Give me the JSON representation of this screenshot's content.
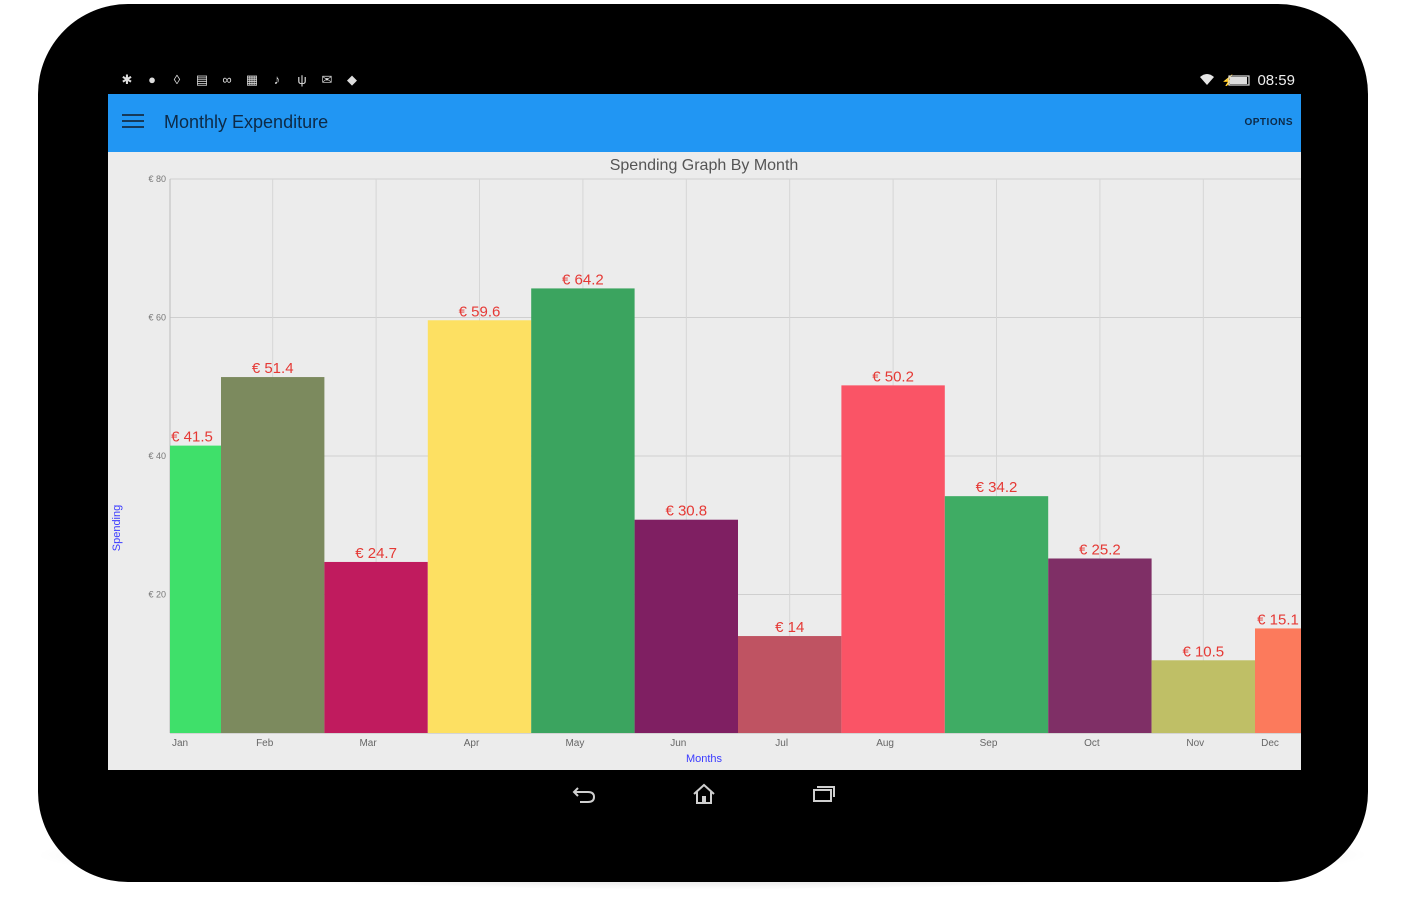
{
  "status_bar": {
    "left_icons": [
      "bluetooth-icon",
      "message-icon",
      "location-icon",
      "notes-icon",
      "link-icon",
      "gallery-icon",
      "music-icon",
      "usb-icon",
      "mail-icon",
      "android-icon"
    ],
    "wifi_icon": "wifi-icon",
    "battery_icon": "battery-icon",
    "time": "08:59"
  },
  "app_bar": {
    "title": "Monthly Expenditure",
    "options_label": "OPTIONS",
    "color": "#2196f3"
  },
  "chart_data": {
    "type": "bar",
    "title": "Spending Graph By Month",
    "xlabel": "Months",
    "ylabel": "Spending",
    "categories": [
      "Jan",
      "Feb",
      "Mar",
      "Apr",
      "May",
      "Jun",
      "Jul",
      "Aug",
      "Sep",
      "Oct",
      "Nov",
      "Dec"
    ],
    "values": [
      41.5,
      51.4,
      24.7,
      59.6,
      64.2,
      30.8,
      14,
      50.2,
      34.2,
      25.2,
      10.5,
      15.1
    ],
    "value_labels": [
      "€ 41.5",
      "€ 51.4",
      "€ 24.7",
      "€ 59.6",
      "€ 64.2",
      "€ 30.8",
      "€ 14",
      "€ 50.2",
      "€ 34.2",
      "€ 25.2",
      "€ 10.5",
      "€ 15.1"
    ],
    "colors": [
      "#3fe06a",
      "#7c8a5e",
      "#c01b5e",
      "#fde062",
      "#3ba45f",
      "#7f1f62",
      "#bf5362",
      "#fa5466",
      "#3fac64",
      "#7f2f66",
      "#bfbf66",
      "#fc7a5c"
    ],
    "y_ticks": [
      20,
      40,
      60,
      80
    ],
    "y_tick_labels": [
      "€ 20",
      "€ 40",
      "€ 60",
      "€ 80"
    ],
    "ylim": [
      0,
      80
    ],
    "grid": true,
    "value_label_color": "#e53935",
    "axis_title_color": "#3b3bff"
  },
  "nav_bar": {
    "back_icon": "back-icon",
    "home_icon": "home-icon",
    "recents_icon": "recents-icon"
  }
}
